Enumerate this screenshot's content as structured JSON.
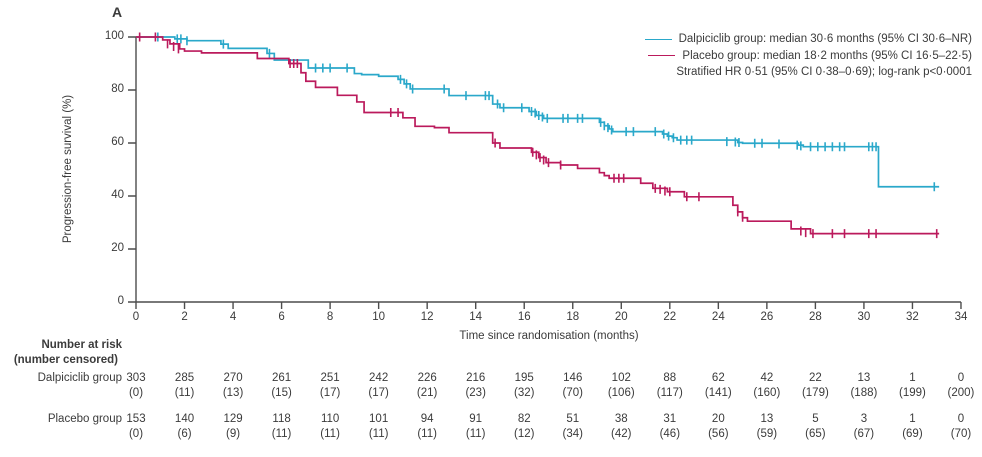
{
  "figure": {
    "panel_label": "A"
  },
  "chart_data": {
    "type": "line",
    "subtype": "kaplan-meier-step",
    "xlabel": "Time since randomisation (months)",
    "ylabel": "Progression-free survival (%)",
    "xlim": [
      0,
      34
    ],
    "ylim": [
      0,
      100
    ],
    "xticks": [
      0,
      2,
      4,
      6,
      8,
      10,
      12,
      14,
      16,
      18,
      20,
      22,
      24,
      26,
      28,
      30,
      32,
      34
    ],
    "yticks": [
      0,
      20,
      40,
      60,
      80,
      100
    ],
    "grid": "off",
    "legend_position": "top-right",
    "annotation": "Stratified HR 0·51 (95% CI 0·38–0·69); log-rank p<0·0001",
    "axis_color": "#4d4d4d",
    "series": [
      {
        "name": "Dalpiciclib group",
        "legend_label": "Dalpiciclib group: median 30·6 months (95% CI 30·6–NR)",
        "color": "#2aa8ca",
        "end_month": 33.1,
        "steps": [
          [
            0,
            100
          ],
          [
            1.6,
            99.3
          ],
          [
            2.1,
            98.6
          ],
          [
            3.5,
            97.3
          ],
          [
            3.8,
            95.7
          ],
          [
            5.4,
            93.8
          ],
          [
            5.7,
            91.3
          ],
          [
            7.1,
            88.3
          ],
          [
            9.0,
            86.2
          ],
          [
            9.3,
            85.8
          ],
          [
            10.0,
            85.2
          ],
          [
            10.8,
            84.0
          ],
          [
            11.05,
            82.3
          ],
          [
            11.3,
            80.4
          ],
          [
            12.9,
            77.9
          ],
          [
            14.7,
            74.7
          ],
          [
            15.0,
            73.3
          ],
          [
            16.2,
            71.9
          ],
          [
            16.5,
            70.4
          ],
          [
            16.8,
            69.3
          ],
          [
            19.1,
            67.8
          ],
          [
            19.3,
            66.5
          ],
          [
            19.5,
            65.3
          ],
          [
            19.65,
            64.3
          ],
          [
            21.7,
            63.4
          ],
          [
            21.9,
            62.6
          ],
          [
            22.1,
            62.0
          ],
          [
            22.3,
            61.1
          ],
          [
            24.8,
            60.2
          ],
          [
            25.0,
            59.9
          ],
          [
            27.3,
            59.2
          ],
          [
            27.5,
            58.6
          ],
          [
            30.6,
            43.5
          ]
        ],
        "censors": [
          [
            0.9,
            100
          ],
          [
            1.7,
            99.3
          ],
          [
            1.85,
            99.3
          ],
          [
            2.1,
            98.6
          ],
          [
            3.6,
            97.3
          ],
          [
            5.5,
            93.8
          ],
          [
            7.4,
            88.3
          ],
          [
            7.7,
            88.3
          ],
          [
            8.0,
            88.3
          ],
          [
            8.7,
            88.3
          ],
          [
            10.9,
            84.0
          ],
          [
            11.15,
            82.3
          ],
          [
            11.4,
            80.4
          ],
          [
            12.7,
            80.4
          ],
          [
            13.6,
            77.9
          ],
          [
            14.4,
            77.9
          ],
          [
            14.55,
            77.9
          ],
          [
            14.9,
            74.7
          ],
          [
            15.15,
            73.3
          ],
          [
            15.9,
            73.3
          ],
          [
            16.3,
            71.9
          ],
          [
            16.45,
            71.3
          ],
          [
            16.6,
            70.4
          ],
          [
            16.75,
            69.8
          ],
          [
            16.95,
            69.3
          ],
          [
            17.6,
            69.3
          ],
          [
            17.8,
            69.3
          ],
          [
            18.2,
            69.3
          ],
          [
            18.4,
            69.3
          ],
          [
            19.15,
            67.8
          ],
          [
            19.3,
            66.5
          ],
          [
            19.45,
            65.8
          ],
          [
            19.6,
            64.9
          ],
          [
            20.2,
            64.3
          ],
          [
            20.5,
            64.3
          ],
          [
            21.4,
            64.3
          ],
          [
            21.75,
            63.4
          ],
          [
            21.95,
            62.6
          ],
          [
            22.15,
            62.0
          ],
          [
            22.45,
            61.1
          ],
          [
            22.7,
            61.1
          ],
          [
            22.9,
            61.1
          ],
          [
            24.35,
            60.5
          ],
          [
            24.7,
            60.4
          ],
          [
            24.85,
            60.2
          ],
          [
            25.5,
            59.9
          ],
          [
            25.8,
            59.9
          ],
          [
            26.5,
            59.6
          ],
          [
            27.25,
            59.2
          ],
          [
            27.4,
            58.9
          ],
          [
            27.8,
            58.6
          ],
          [
            28.1,
            58.6
          ],
          [
            28.4,
            58.6
          ],
          [
            28.7,
            58.6
          ],
          [
            29.0,
            58.6
          ],
          [
            29.2,
            58.6
          ],
          [
            30.2,
            58.6
          ],
          [
            30.35,
            58.6
          ],
          [
            30.5,
            58.6
          ],
          [
            32.9,
            43.5
          ]
        ]
      },
      {
        "name": "Placebo group",
        "legend_label": "Placebo group: median 18·2 months (95% CI 16·5–22·5)",
        "color": "#bb1a5c",
        "end_month": 33.1,
        "steps": [
          [
            0,
            100
          ],
          [
            1.1,
            98.9
          ],
          [
            1.4,
            97.4
          ],
          [
            1.8,
            95.5
          ],
          [
            2.0,
            94.7
          ],
          [
            2.7,
            94.0
          ],
          [
            5.0,
            91.9
          ],
          [
            6.3,
            90.0
          ],
          [
            6.8,
            86.5
          ],
          [
            7.0,
            83.3
          ],
          [
            7.4,
            81.0
          ],
          [
            8.3,
            78.0
          ],
          [
            9.1,
            75.5
          ],
          [
            9.4,
            71.5
          ],
          [
            11.0,
            69.5
          ],
          [
            11.5,
            66.3
          ],
          [
            12.3,
            65.8
          ],
          [
            12.9,
            63.9
          ],
          [
            14.7,
            60.0
          ],
          [
            15.0,
            58.1
          ],
          [
            16.3,
            56.5
          ],
          [
            16.6,
            54.5
          ],
          [
            16.9,
            52.6
          ],
          [
            17.5,
            51.7
          ],
          [
            18.2,
            50.4
          ],
          [
            19.1,
            48.8
          ],
          [
            19.3,
            47.7
          ],
          [
            19.5,
            46.7
          ],
          [
            20.8,
            44.8
          ],
          [
            21.3,
            42.9
          ],
          [
            21.9,
            41.6
          ],
          [
            22.6,
            39.7
          ],
          [
            24.6,
            36.5
          ],
          [
            24.8,
            34.0
          ],
          [
            25.0,
            31.8
          ],
          [
            25.2,
            30.5
          ],
          [
            27.0,
            27.6
          ],
          [
            27.8,
            25.8
          ]
        ],
        "censors": [
          [
            0.15,
            100
          ],
          [
            0.8,
            100
          ],
          [
            1.3,
            97.4
          ],
          [
            1.55,
            96.4
          ],
          [
            1.75,
            95.5
          ],
          [
            6.35,
            90.0
          ],
          [
            6.5,
            90.0
          ],
          [
            6.65,
            90.0
          ],
          [
            10.5,
            71.5
          ],
          [
            10.8,
            71.5
          ],
          [
            14.8,
            60.0
          ],
          [
            16.35,
            56.5
          ],
          [
            16.5,
            55.5
          ],
          [
            16.65,
            54.5
          ],
          [
            16.8,
            53.6
          ],
          [
            17.0,
            52.6
          ],
          [
            17.5,
            51.7
          ],
          [
            19.7,
            46.7
          ],
          [
            19.9,
            46.7
          ],
          [
            20.1,
            46.7
          ],
          [
            21.4,
            42.9
          ],
          [
            21.6,
            42.5
          ],
          [
            21.8,
            41.9
          ],
          [
            22.0,
            41.6
          ],
          [
            22.7,
            39.7
          ],
          [
            23.2,
            39.7
          ],
          [
            24.8,
            34.0
          ],
          [
            25.0,
            32.0
          ],
          [
            27.4,
            26.8
          ],
          [
            27.6,
            26.2
          ],
          [
            27.9,
            25.8
          ],
          [
            28.7,
            25.8
          ],
          [
            29.2,
            25.8
          ],
          [
            30.2,
            25.8
          ],
          [
            30.5,
            25.8
          ],
          [
            33.0,
            25.8
          ]
        ]
      }
    ]
  },
  "risk_table": {
    "header_line1": "Number at risk",
    "header_line2": "(number censored)",
    "months": [
      0,
      2,
      4,
      6,
      8,
      10,
      12,
      14,
      16,
      18,
      20,
      22,
      24,
      26,
      28,
      30,
      32,
      34
    ],
    "rows": [
      {
        "label": "Dalpiciclib group",
        "at_risk": [
          "303",
          "285",
          "270",
          "261",
          "251",
          "242",
          "226",
          "216",
          "195",
          "146",
          "102",
          "88",
          "62",
          "42",
          "22",
          "13",
          "1",
          "0"
        ],
        "censored": [
          "(0)",
          "(11)",
          "(13)",
          "(15)",
          "(17)",
          "(17)",
          "(21)",
          "(23)",
          "(32)",
          "(70)",
          "(106)",
          "(117)",
          "(141)",
          "(160)",
          "(179)",
          "(188)",
          "(199)",
          "(200)"
        ]
      },
      {
        "label": "Placebo group",
        "at_risk": [
          "153",
          "140",
          "129",
          "118",
          "110",
          "101",
          "94",
          "91",
          "82",
          "51",
          "38",
          "31",
          "20",
          "13",
          "5",
          "3",
          "1",
          "0"
        ],
        "censored": [
          "(0)",
          "(6)",
          "(9)",
          "(11)",
          "(11)",
          "(11)",
          "(11)",
          "(11)",
          "(12)",
          "(34)",
          "(42)",
          "(46)",
          "(56)",
          "(59)",
          "(65)",
          "(67)",
          "(69)",
          "(70)"
        ]
      }
    ]
  }
}
